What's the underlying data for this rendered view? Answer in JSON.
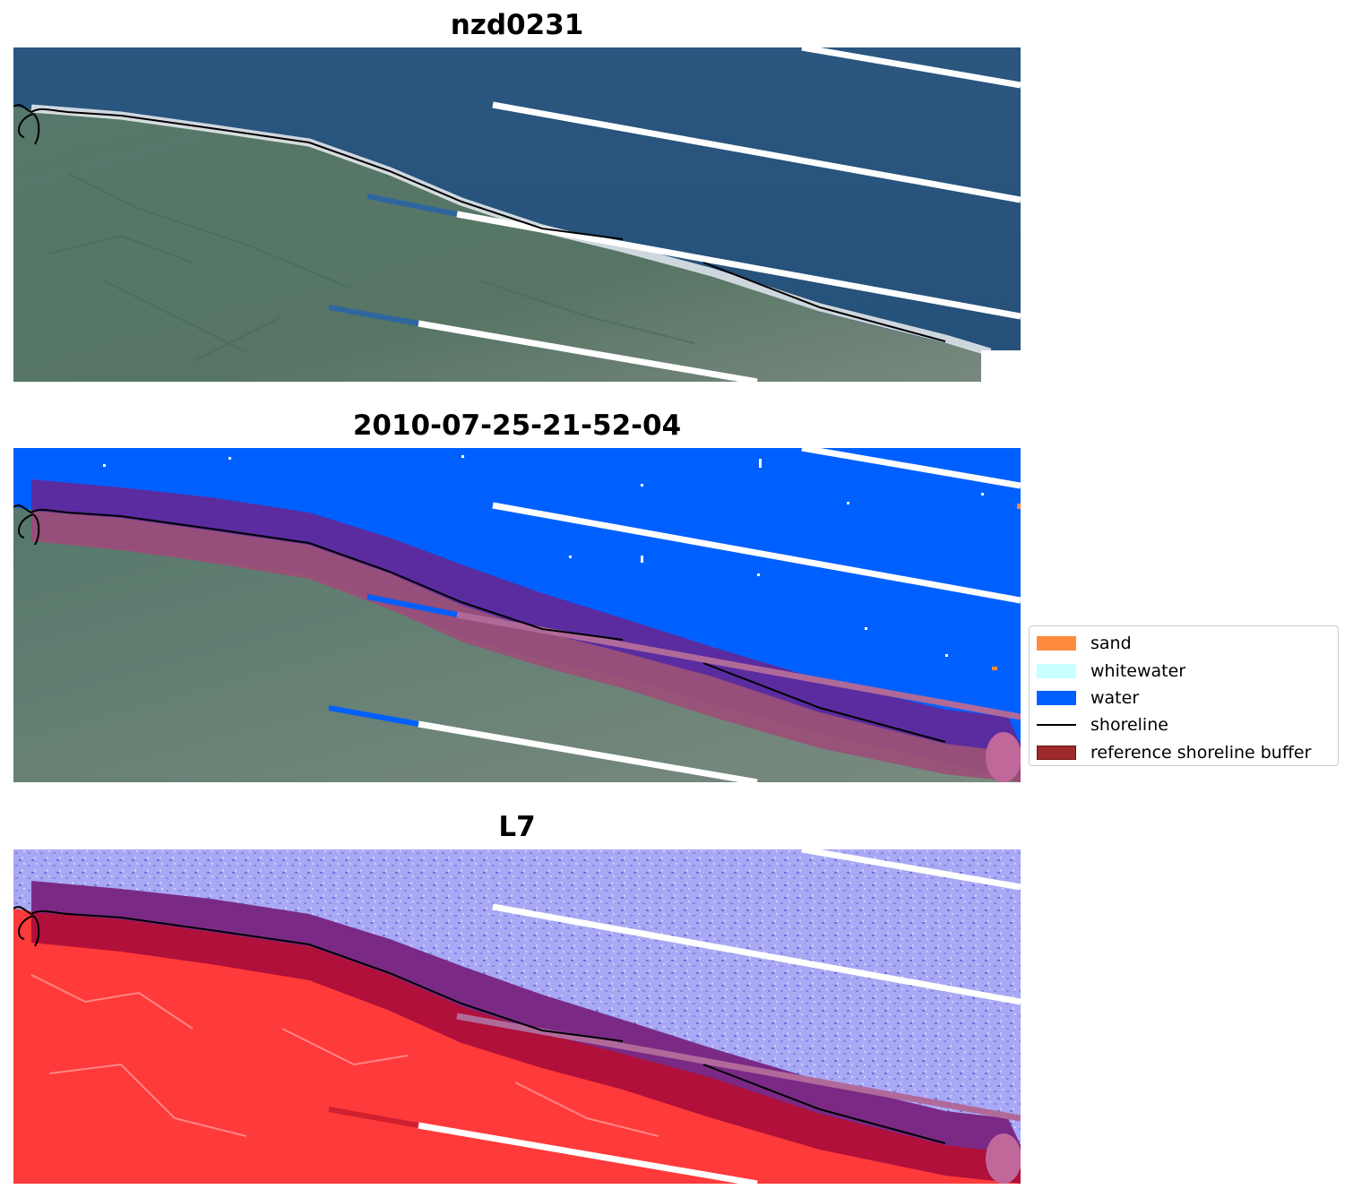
{
  "panels": [
    {
      "title": "nzd0231",
      "mode": "rgb"
    },
    {
      "title": "2010-07-25-21-52-04",
      "mode": "classified"
    },
    {
      "title": "L7",
      "mode": "index"
    }
  ],
  "legend": {
    "items": [
      {
        "label": "sand",
        "color": "#FF8A3D",
        "kind": "patch"
      },
      {
        "label": "whitewater",
        "color": "#C8FFFF",
        "kind": "patch"
      },
      {
        "label": "water",
        "color": "#0060FF",
        "kind": "patch"
      },
      {
        "label": "shoreline",
        "color": "#000000",
        "kind": "line"
      },
      {
        "label": "reference shoreline buffer",
        "color": "#9E2A2B",
        "kind": "patch",
        "edge": "#6B1212"
      }
    ]
  },
  "colors": {
    "rgb_sea": "#2D5A82",
    "rgb_land": "#4E7262",
    "class_water": "#0060FF",
    "buffer_blue": "#5A2CA0",
    "buffer_land": "#9A5078",
    "index_water": "#A8A8F4",
    "index_land": "#FF3A3A",
    "buffer_index_sea": "#7A2A85",
    "buffer_index_land": "#B0103A"
  }
}
